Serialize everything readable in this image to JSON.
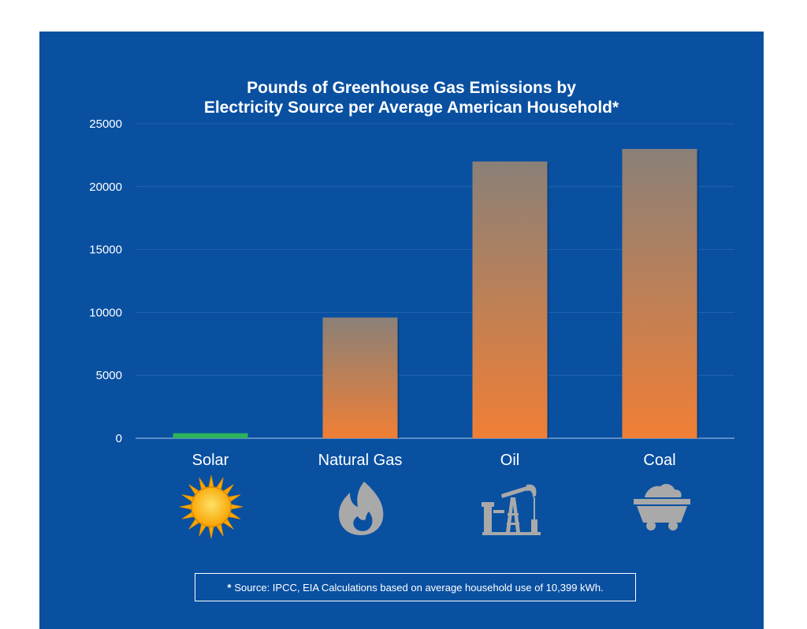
{
  "colors": {
    "background": "#0950a1",
    "bar_top": "#8a8078",
    "bar_bottom": "#f07f35",
    "solar_bar": "#2db35a",
    "icon_gray": "#a9a9a9",
    "sun_outer": "#f6a800",
    "sun_inner": "#ffd02a"
  },
  "chart_data": {
    "type": "bar",
    "title": "Pounds of Greenhouse Gas Emissions by Electricity Source per Average American Household*",
    "title_lines": [
      "Pounds of Greenhouse Gas Emissions by",
      "Electricity Source per Average American Household*"
    ],
    "categories": [
      "Solar",
      "Natural Gas",
      "Oil",
      "Coal"
    ],
    "values": [
      400,
      9600,
      22000,
      23000
    ],
    "ylim": [
      0,
      25000
    ],
    "yticks": [
      0,
      5000,
      10000,
      15000,
      20000,
      25000
    ],
    "grid": true,
    "icons": [
      "sun-icon",
      "flame-icon",
      "oil-pump-icon",
      "coal-cart-icon"
    ]
  },
  "footnote": {
    "marker": "*",
    "text": "Source:  IPCC, EIA Calculations based on average household use of 10,399 kWh."
  }
}
